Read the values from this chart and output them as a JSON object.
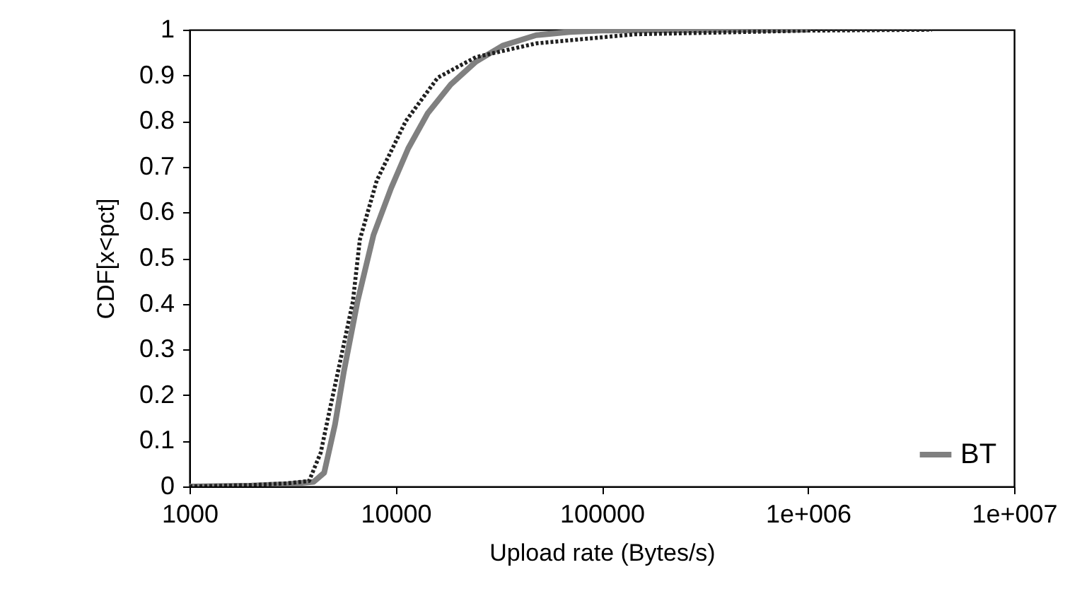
{
  "chart_data": {
    "type": "line",
    "xlabel": "Upload rate (Bytes/s)",
    "ylabel": "CDF[x<pct]",
    "log": "x",
    "xlim": [
      1000,
      10000000
    ],
    "xticks": [
      1000,
      10000,
      100000,
      {
        "value": 1000000,
        "label": "1e+006"
      },
      {
        "value": 10000000,
        "label": "1e+007"
      }
    ],
    "ylim": [
      0,
      1
    ],
    "yticks": [
      0,
      0.1,
      0.2,
      0.3,
      0.4,
      0.5,
      0.6,
      0.7,
      0.8,
      0.9,
      1
    ],
    "legend": "bottom right",
    "grid": false,
    "series": [
      {
        "name": "BT",
        "color": "#808080",
        "line_style": "solid",
        "x": [
          1000,
          2000,
          3000,
          4000,
          4500,
          5080,
          5600,
          6530,
          7800,
          9500,
          11500,
          14300,
          18500,
          24500,
          33000,
          48000,
          70000,
          100000,
          300000,
          1000000
        ],
        "values": [
          0,
          0.002,
          0.005,
          0.01,
          0.03,
          0.136,
          0.25,
          0.405,
          0.55,
          0.653,
          0.74,
          0.817,
          0.88,
          0.93,
          0.965,
          0.988,
          0.995,
          0.998,
          0.999,
          1
        ]
      },
      {
        "color": "#202020",
        "line_style": "dotted",
        "x": [
          1000,
          2000,
          3000,
          3800,
          4330,
          4800,
          5300,
          6200,
          6700,
          8100,
          11200,
          16000,
          24500,
          48000,
          145000,
          500000,
          1000000,
          4000000
        ],
        "values": [
          0,
          0.003,
          0.007,
          0.012,
          0.074,
          0.17,
          0.26,
          0.405,
          0.54,
          0.67,
          0.8,
          0.895,
          0.94,
          0.97,
          0.99,
          0.995,
          0.998,
          1
        ]
      }
    ]
  }
}
